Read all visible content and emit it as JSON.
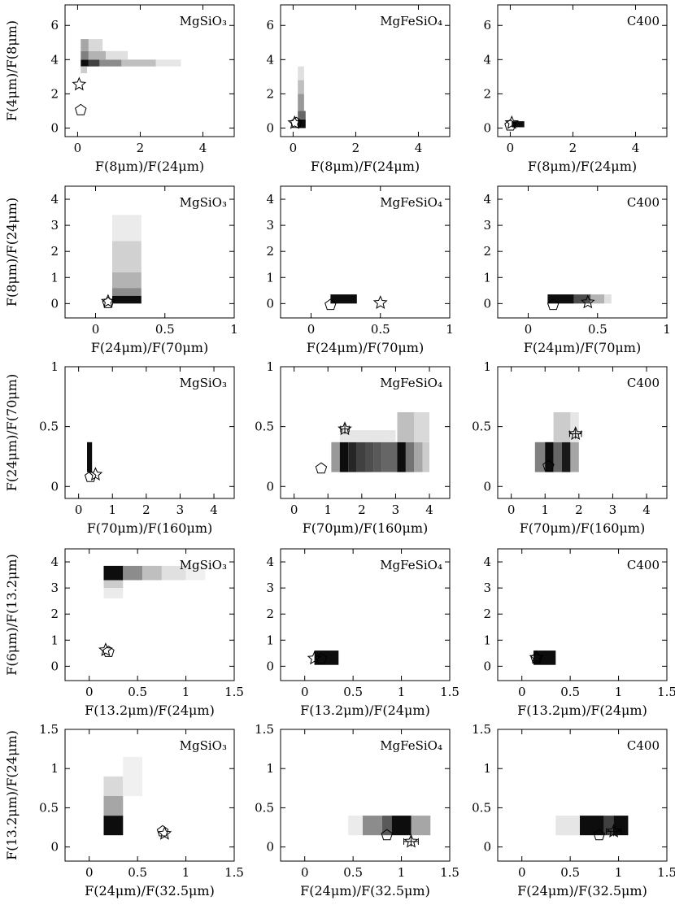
{
  "figure": {
    "description_note": "5x3 grid of colour-colour diagrams with grey-scale model density maps, open star and pentagon markers for observations",
    "rows": [
      {
        "xlabel": "F(8μm)/F(24μm)",
        "ylabel": "F(4μm)/F(8μm)",
        "xlim": [
          -0.4,
          5.0
        ],
        "ylim": [
          -0.5,
          7.2
        ],
        "xticks": [
          0,
          2,
          4
        ],
        "yticks": [
          0,
          2,
          4,
          6
        ]
      },
      {
        "xlabel": "F(24μm)/F(70μm)",
        "ylabel": "F(8μm)/F(24μm)",
        "xlim": [
          -0.22,
          1.0
        ],
        "ylim": [
          -0.55,
          4.5
        ],
        "xticks": [
          0,
          0.5,
          1
        ],
        "yticks": [
          0,
          1,
          2,
          3,
          4
        ]
      },
      {
        "xlabel": "F(70μm)/F(160μm)",
        "ylabel": "F(24μm)/F(70μm)",
        "xlim": [
          -0.4,
          4.6
        ],
        "ylim": [
          -0.1,
          1.0
        ],
        "xticks": [
          0,
          1,
          2,
          3,
          4
        ],
        "yticks": [
          0,
          0.5,
          1
        ]
      },
      {
        "xlabel": "F(13.2μm)/F(24μm)",
        "ylabel": "F(6μm)/F(13.2μm)",
        "xlim": [
          -0.25,
          1.5
        ],
        "ylim": [
          -0.55,
          4.5
        ],
        "xticks": [
          0,
          0.5,
          1,
          1.5
        ],
        "yticks": [
          0,
          1,
          2,
          3,
          4
        ]
      },
      {
        "xlabel": "F(24μm)/F(32.5μm)",
        "ylabel": "F(13.2μm)/F(24μm)",
        "xlim": [
          -0.25,
          1.5
        ],
        "ylim": [
          -0.18,
          1.5
        ],
        "xticks": [
          0,
          0.5,
          1,
          1.5
        ],
        "yticks": [
          0,
          0.5,
          1,
          1.5
        ]
      }
    ],
    "columns": [
      "MgSiO₃",
      "MgFeSiO₄",
      "C400"
    ]
  },
  "chart_data": [
    {
      "type": "heatmap",
      "row": 0,
      "col": 0,
      "label": "MgSiO₃",
      "cells": [
        [
          0.1,
          0.35,
          3.6,
          4.0,
          0.95
        ],
        [
          0.35,
          0.7,
          3.6,
          4.0,
          0.75
        ],
        [
          0.7,
          1.4,
          3.6,
          4.0,
          0.45
        ],
        [
          1.4,
          2.5,
          3.6,
          4.0,
          0.25
        ],
        [
          2.5,
          3.3,
          3.6,
          4.0,
          0.1
        ],
        [
          0.1,
          0.35,
          4.0,
          4.5,
          0.5
        ],
        [
          0.35,
          0.9,
          4.0,
          4.5,
          0.3
        ],
        [
          0.9,
          1.6,
          4.0,
          4.5,
          0.12
        ],
        [
          0.1,
          0.35,
          4.5,
          5.2,
          0.35
        ],
        [
          0.35,
          0.8,
          4.5,
          5.2,
          0.15
        ],
        [
          0.1,
          0.3,
          3.2,
          3.6,
          0.2
        ]
      ],
      "star": [
        0.05,
        2.55
      ],
      "pentagon": [
        0.1,
        1.05
      ]
    },
    {
      "type": "heatmap",
      "row": 0,
      "col": 1,
      "label": "MgFeSiO₄",
      "cells": [
        [
          0.15,
          0.4,
          0.0,
          0.5,
          0.95
        ],
        [
          0.15,
          0.4,
          0.5,
          1.0,
          0.6
        ],
        [
          0.15,
          0.35,
          1.0,
          2.0,
          0.4
        ],
        [
          0.15,
          0.35,
          2.0,
          2.8,
          0.25
        ],
        [
          0.15,
          0.35,
          2.8,
          3.6,
          0.12
        ]
      ],
      "star": [
        0.05,
        0.3
      ],
      "pentagon": [
        0.1,
        0.3
      ]
    },
    {
      "type": "heatmap",
      "row": 0,
      "col": 2,
      "label": "C400",
      "cells": [
        [
          0.05,
          0.45,
          0.05,
          0.4,
          0.95
        ]
      ],
      "star": [
        0.05,
        0.3
      ],
      "pentagon": [
        0.0,
        0.15
      ]
    },
    {
      "type": "heatmap",
      "row": 1,
      "col": 0,
      "label": "MgSiO₃",
      "cells": [
        [
          0.12,
          0.33,
          0.0,
          0.3,
          0.95
        ],
        [
          0.12,
          0.33,
          0.3,
          0.6,
          0.45
        ],
        [
          0.12,
          0.33,
          0.6,
          1.2,
          0.3
        ],
        [
          0.12,
          0.33,
          1.2,
          2.4,
          0.18
        ],
        [
          0.12,
          0.33,
          2.4,
          3.4,
          0.08
        ]
      ],
      "star": [
        0.09,
        0.08
      ],
      "pentagon": [
        0.09,
        0.02
      ]
    },
    {
      "type": "heatmap",
      "row": 1,
      "col": 1,
      "label": "MgFeSiO₄",
      "cells": [
        [
          0.14,
          0.33,
          0.0,
          0.35,
          0.95
        ]
      ],
      "star": [
        0.5,
        0.03
      ],
      "pentagon": [
        0.14,
        -0.05
      ]
    },
    {
      "type": "heatmap",
      "row": 1,
      "col": 2,
      "label": "C400",
      "cells": [
        [
          0.14,
          0.33,
          0.0,
          0.35,
          0.95
        ],
        [
          0.33,
          0.45,
          0.0,
          0.35,
          0.7
        ],
        [
          0.45,
          0.55,
          0.0,
          0.35,
          0.3
        ],
        [
          0.55,
          0.6,
          0.0,
          0.35,
          0.12
        ]
      ],
      "star": [
        0.43,
        0.05
      ],
      "pentagon": [
        0.18,
        -0.05
      ]
    },
    {
      "type": "heatmap",
      "row": 2,
      "col": 0,
      "label": "MgSiO₃",
      "cells": [
        [
          0.25,
          0.4,
          0.12,
          0.37,
          0.95
        ]
      ],
      "star": [
        0.5,
        0.1
      ],
      "pentagon": [
        0.35,
        0.08
      ]
    },
    {
      "type": "heatmap",
      "row": 2,
      "col": 1,
      "label": "MgFeSiO₄",
      "cells": [
        [
          1.1,
          1.35,
          0.12,
          0.37,
          0.4
        ],
        [
          1.35,
          1.6,
          0.12,
          0.37,
          0.95
        ],
        [
          1.6,
          1.85,
          0.12,
          0.37,
          0.85
        ],
        [
          1.85,
          2.1,
          0.12,
          0.37,
          0.75
        ],
        [
          2.1,
          2.35,
          0.12,
          0.37,
          0.7
        ],
        [
          2.35,
          2.6,
          0.12,
          0.37,
          0.65
        ],
        [
          2.6,
          3.05,
          0.12,
          0.37,
          0.6
        ],
        [
          3.05,
          3.3,
          0.12,
          0.37,
          0.95
        ],
        [
          3.3,
          3.55,
          0.12,
          0.37,
          0.55
        ],
        [
          3.55,
          3.8,
          0.12,
          0.37,
          0.35
        ],
        [
          3.8,
          4.0,
          0.12,
          0.37,
          0.2
        ],
        [
          3.05,
          3.55,
          0.37,
          0.62,
          0.25
        ],
        [
          3.55,
          4.0,
          0.37,
          0.62,
          0.15
        ],
        [
          1.35,
          3.0,
          0.37,
          0.47,
          0.1
        ]
      ],
      "star": [
        1.5,
        0.48
      ],
      "star_err": 0.25,
      "pentagon": [
        0.8,
        0.15
      ]
    },
    {
      "type": "heatmap",
      "row": 2,
      "col": 2,
      "label": "C400",
      "cells": [
        [
          0.7,
          1.0,
          0.12,
          0.37,
          0.5
        ],
        [
          1.0,
          1.25,
          0.12,
          0.37,
          0.95
        ],
        [
          1.25,
          1.5,
          0.12,
          0.37,
          0.6
        ],
        [
          1.5,
          1.75,
          0.12,
          0.37,
          0.9
        ],
        [
          1.75,
          2.0,
          0.12,
          0.37,
          0.35
        ],
        [
          1.25,
          1.75,
          0.37,
          0.62,
          0.2
        ],
        [
          1.75,
          2.0,
          0.37,
          0.62,
          0.1
        ]
      ],
      "star": [
        1.9,
        0.44
      ],
      "star_err": 0.35,
      "pentagon": [
        1.1,
        0.17
      ]
    },
    {
      "type": "heatmap",
      "row": 3,
      "col": 0,
      "label": "MgSiO₃",
      "cells": [
        [
          0.15,
          0.35,
          3.3,
          3.85,
          0.95
        ],
        [
          0.35,
          0.55,
          3.3,
          3.85,
          0.45
        ],
        [
          0.55,
          0.75,
          3.3,
          3.85,
          0.25
        ],
        [
          0.75,
          1.0,
          3.3,
          3.85,
          0.12
        ],
        [
          1.0,
          1.2,
          3.3,
          3.85,
          0.06
        ],
        [
          0.15,
          0.35,
          3.0,
          3.3,
          0.2
        ],
        [
          0.15,
          0.35,
          2.6,
          3.0,
          0.08
        ]
      ],
      "star": [
        0.17,
        0.62
      ],
      "pentagon": [
        0.2,
        0.55
      ]
    },
    {
      "type": "heatmap",
      "row": 3,
      "col": 1,
      "label": "MgFeSiO₄",
      "cells": [
        [
          0.1,
          0.35,
          0.05,
          0.6,
          0.95
        ]
      ],
      "star": [
        0.1,
        0.3
      ],
      "pentagon": [
        0.17,
        0.28
      ]
    },
    {
      "type": "heatmap",
      "row": 3,
      "col": 2,
      "label": "C400",
      "cells": [
        [
          0.12,
          0.35,
          0.05,
          0.6,
          0.95
        ]
      ],
      "star": [
        0.15,
        0.33
      ],
      "pentagon": [
        0.15,
        0.3
      ]
    },
    {
      "type": "heatmap",
      "row": 4,
      "col": 0,
      "label": "MgSiO₃",
      "cells": [
        [
          0.15,
          0.35,
          0.15,
          0.4,
          0.95
        ],
        [
          0.15,
          0.35,
          0.4,
          0.65,
          0.35
        ],
        [
          0.15,
          0.35,
          0.65,
          0.9,
          0.15
        ],
        [
          0.35,
          0.55,
          0.65,
          1.15,
          0.06
        ]
      ],
      "star": [
        0.78,
        0.17
      ],
      "pentagon": [
        0.76,
        0.2
      ]
    },
    {
      "type": "heatmap",
      "row": 4,
      "col": 1,
      "label": "MgFeSiO₄",
      "cells": [
        [
          0.6,
          0.8,
          0.15,
          0.4,
          0.45
        ],
        [
          0.8,
          0.9,
          0.15,
          0.4,
          0.65
        ],
        [
          0.9,
          1.1,
          0.15,
          0.4,
          0.95
        ],
        [
          1.1,
          1.3,
          0.15,
          0.4,
          0.35
        ],
        [
          0.45,
          0.6,
          0.15,
          0.4,
          0.08
        ]
      ],
      "star": [
        1.1,
        0.07
      ],
      "star_err": 0.15,
      "pentagon": [
        0.85,
        0.15
      ]
    },
    {
      "type": "heatmap",
      "row": 4,
      "col": 2,
      "label": "C400",
      "cells": [
        [
          0.35,
          0.6,
          0.15,
          0.4,
          0.1
        ],
        [
          0.6,
          0.85,
          0.15,
          0.4,
          0.95
        ],
        [
          0.85,
          0.95,
          0.15,
          0.4,
          0.75
        ],
        [
          0.95,
          1.1,
          0.15,
          0.4,
          0.95
        ]
      ],
      "star": [
        0.95,
        0.2
      ],
      "star_err": 0.15,
      "pentagon": [
        0.8,
        0.15
      ]
    }
  ]
}
